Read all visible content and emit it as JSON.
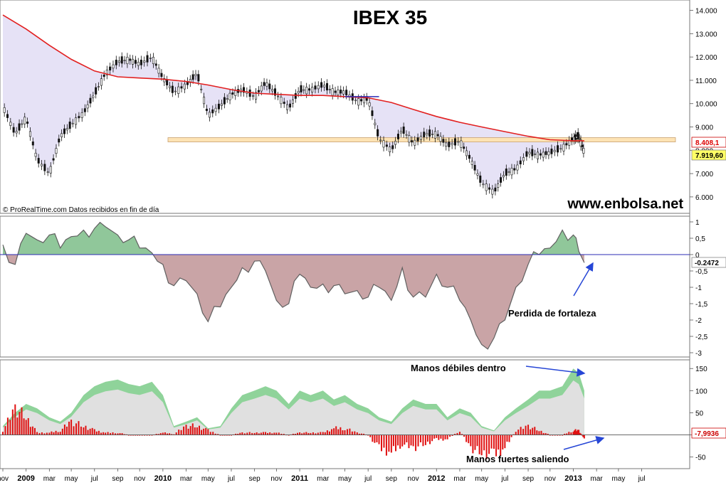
{
  "colors": {
    "price_up": "#ffffff",
    "price_down": "#111111",
    "ma_line": "#e22020",
    "ma_fill": "#e6e2f6",
    "support_band": "#fde3b4",
    "osc_pos": "#90c79a",
    "osc_neg": "#c9a4a6",
    "osc_line": "#606060",
    "zero_line": "#2b2bb4",
    "vol_green": "#8fd39a",
    "vol_grey": "#e0e0e0",
    "vol_bar": "#e01010",
    "arrow": "#2646d6",
    "last_price_box": "#ffff66",
    "ma_value_text": "#dd0000"
  },
  "header": {
    "title": "IBEX 35",
    "website": "www.enbolsa.net",
    "credit": "© ProRealTime.com  Datos recibidos en fin de día"
  },
  "chart_data": [
    {
      "type": "line",
      "panel": "price",
      "title": "IBEX 35",
      "y_range": [
        5600,
        14200
      ],
      "y_ticks": [
        "14.000",
        "13.000",
        "12.000",
        "11.000",
        "10.000",
        "9.000",
        "8.000",
        "7.000",
        "6.000"
      ],
      "y_tick_values": [
        14000,
        13000,
        12000,
        11000,
        10000,
        9000,
        8000,
        7000,
        6000
      ],
      "x_range": [
        2008.83,
        2013.83
      ],
      "series": [
        {
          "role": "price",
          "x": [
            2008.83,
            2008.92,
            2009.0,
            2009.08,
            2009.17,
            2009.25,
            2009.33,
            2009.42,
            2009.5,
            2009.58,
            2009.67,
            2009.75,
            2009.83,
            2009.92,
            2010.0,
            2010.08,
            2010.17,
            2010.25,
            2010.33,
            2010.42,
            2010.5,
            2010.58,
            2010.67,
            2010.75,
            2010.83,
            2010.92,
            2011.0,
            2011.08,
            2011.17,
            2011.25,
            2011.33,
            2011.42,
            2011.5,
            2011.58,
            2011.67,
            2011.75,
            2011.83,
            2011.92,
            2012.0,
            2012.08,
            2012.17,
            2012.25,
            2012.33,
            2012.42,
            2012.5,
            2012.58,
            2012.67,
            2012.75,
            2012.83,
            2012.92,
            2013.0,
            2013.04,
            2013.08
          ],
          "values": [
            9900,
            8700,
            9400,
            7600,
            7000,
            8600,
            9100,
            9600,
            10400,
            11300,
            11800,
            11900,
            11700,
            12000,
            11100,
            10500,
            10800,
            11300,
            9500,
            9900,
            10400,
            10600,
            10300,
            10900,
            10400,
            9800,
            10600,
            10600,
            10800,
            10500,
            10500,
            10100,
            10200,
            8500,
            8000,
            8900,
            8300,
            8700,
            8700,
            8200,
            8400,
            7600,
            6600,
            6200,
            7000,
            7200,
            7900,
            7800,
            7900,
            8100,
            8500,
            8600,
            7920
          ]
        },
        {
          "role": "moving_average",
          "x": [
            2008.83,
            2009.0,
            2009.17,
            2009.33,
            2009.5,
            2009.67,
            2009.83,
            2010.0,
            2010.17,
            2010.33,
            2010.5,
            2010.67,
            2010.83,
            2011.0,
            2011.17,
            2011.33,
            2011.5,
            2011.67,
            2011.83,
            2012.0,
            2012.17,
            2012.33,
            2012.5,
            2012.67,
            2012.83,
            2013.0,
            2013.08
          ],
          "values": [
            13800,
            13200,
            12500,
            11900,
            11400,
            11150,
            11100,
            11050,
            10950,
            10800,
            10600,
            10450,
            10400,
            10350,
            10350,
            10300,
            10250,
            10050,
            9750,
            9450,
            9200,
            9000,
            8800,
            8600,
            8450,
            8408,
            8408
          ]
        }
      ],
      "annotations": {
        "support_level": 8450,
        "ma_value_label": "8.408,1",
        "last_price_label": "7.919,60"
      }
    },
    {
      "type": "area",
      "panel": "oscillator",
      "y_range": [
        -3.0,
        1.0
      ],
      "y_ticks": [
        "1",
        "0,5",
        "0",
        "-0,5",
        "-1",
        "-1,5",
        "-2",
        "-2,5",
        "-3"
      ],
      "y_tick_values": [
        1,
        0.5,
        0,
        -0.5,
        -1,
        -1.5,
        -2,
        -2.5,
        -3
      ],
      "x": [
        2008.83,
        2008.92,
        2009.0,
        2009.08,
        2009.17,
        2009.25,
        2009.33,
        2009.42,
        2009.5,
        2009.58,
        2009.67,
        2009.75,
        2009.83,
        2009.92,
        2010.0,
        2010.08,
        2010.17,
        2010.25,
        2010.33,
        2010.42,
        2010.5,
        2010.58,
        2010.67,
        2010.75,
        2010.83,
        2010.92,
        2011.0,
        2011.08,
        2011.17,
        2011.25,
        2011.33,
        2011.42,
        2011.5,
        2011.58,
        2011.67,
        2011.75,
        2011.83,
        2011.92,
        2012.0,
        2012.08,
        2012.17,
        2012.25,
        2012.33,
        2012.42,
        2012.5,
        2012.58,
        2012.67,
        2012.75,
        2012.83,
        2012.92,
        2013.0,
        2013.04,
        2013.08
      ],
      "values": [
        0.3,
        -0.3,
        0.65,
        0.45,
        0.6,
        0.2,
        0.55,
        0.75,
        0.8,
        0.85,
        0.6,
        0.45,
        0.2,
        0.05,
        -0.3,
        -0.95,
        -0.8,
        -1.2,
        -2.05,
        -1.6,
        -1.0,
        -0.4,
        -0.2,
        -0.5,
        -1.4,
        -1.5,
        -0.6,
        -1.0,
        -0.9,
        -0.95,
        -1.2,
        -1.1,
        -1.3,
        -1.0,
        -1.4,
        -0.4,
        -1.3,
        -1.3,
        -0.6,
        -1.0,
        -1.4,
        -2.0,
        -2.75,
        -2.55,
        -2.0,
        -1.0,
        -0.3,
        0.0,
        0.2,
        0.75,
        0.6,
        0.1,
        -0.2472
      ]
    },
    {
      "type": "bar",
      "panel": "volume_flow",
      "y_range": [
        -65,
        160
      ],
      "y_ticks": [
        "150",
        "100",
        "50",
        "0",
        "-50"
      ],
      "y_tick_values": [
        150,
        100,
        50,
        0,
        -50
      ],
      "x": [
        2008.83,
        2008.92,
        2009.0,
        2009.08,
        2009.17,
        2009.25,
        2009.33,
        2009.42,
        2009.5,
        2009.58,
        2009.67,
        2009.75,
        2009.83,
        2009.92,
        2010.0,
        2010.08,
        2010.17,
        2010.25,
        2010.33,
        2010.42,
        2010.5,
        2010.58,
        2010.67,
        2010.75,
        2010.83,
        2010.92,
        2011.0,
        2011.08,
        2011.17,
        2011.25,
        2011.33,
        2011.42,
        2011.5,
        2011.58,
        2011.67,
        2011.75,
        2011.83,
        2011.92,
        2012.0,
        2012.08,
        2012.17,
        2012.25,
        2012.33,
        2012.42,
        2012.5,
        2012.58,
        2012.67,
        2012.75,
        2012.83,
        2012.92,
        2013.0,
        2013.04,
        2013.08
      ],
      "series": [
        {
          "name": "Manos débiles",
          "values": [
            20,
            50,
            70,
            60,
            40,
            30,
            50,
            90,
            110,
            120,
            125,
            115,
            110,
            120,
            90,
            20,
            30,
            40,
            15,
            20,
            60,
            90,
            100,
            110,
            100,
            70,
            100,
            90,
            100,
            80,
            90,
            70,
            60,
            40,
            30,
            60,
            80,
            70,
            70,
            40,
            60,
            50,
            20,
            10,
            40,
            60,
            80,
            100,
            100,
            110,
            150,
            140,
            100
          ]
        },
        {
          "name": "Manos fuertes",
          "values": [
            10,
            60,
            40,
            5,
            5,
            10,
            30,
            20,
            10,
            5,
            5,
            0,
            0,
            0,
            5,
            2,
            20,
            20,
            10,
            0,
            0,
            5,
            5,
            5,
            5,
            0,
            5,
            5,
            5,
            15,
            15,
            5,
            0,
            -30,
            -40,
            -20,
            -30,
            -20,
            -10,
            -10,
            10,
            -30,
            -40,
            -45,
            -30,
            10,
            20,
            10,
            0,
            0,
            10,
            10,
            -8
          ]
        }
      ],
      "last_value_label": "-7,9936"
    }
  ],
  "x_axis": {
    "labels": [
      "nov",
      "2009",
      "mar",
      "may",
      "jul",
      "sep",
      "nov",
      "2010",
      "mar",
      "may",
      "jul",
      "sep",
      "nov",
      "2011",
      "mar",
      "may",
      "jul",
      "sep",
      "nov",
      "2012",
      "mar",
      "may",
      "jul",
      "sep",
      "nov",
      "2013",
      "mar",
      "may",
      "jul"
    ],
    "positions": [
      2008.83,
      2009.0,
      2009.17,
      2009.33,
      2009.5,
      2009.67,
      2009.83,
      2010.0,
      2010.17,
      2010.33,
      2010.5,
      2010.67,
      2010.83,
      2011.0,
      2011.17,
      2011.33,
      2011.5,
      2011.67,
      2011.83,
      2012.0,
      2012.17,
      2012.33,
      2012.5,
      2012.67,
      2012.83,
      2013.0,
      2013.17,
      2013.33,
      2013.5
    ]
  },
  "annotations": {
    "perdida": "Perdida de fortaleza",
    "debiles": "Manos débiles dentro",
    "fuertes": "Manos fuertes saliendo"
  }
}
